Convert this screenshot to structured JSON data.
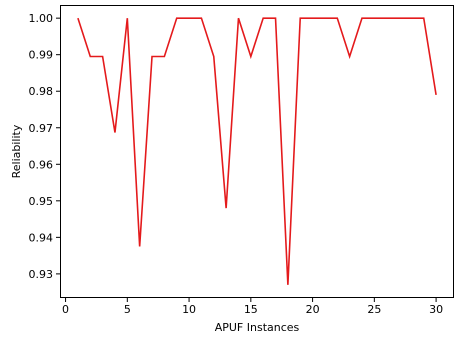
{
  "chart_data": {
    "type": "line",
    "title": "",
    "xlabel": "APUF Instances",
    "ylabel": "Reliability",
    "xlim": [
      -0.45,
      31.45
    ],
    "ylim": [
      0.9234,
      1.0036
    ],
    "xticks": [
      0,
      5,
      10,
      15,
      20,
      25,
      30
    ],
    "xtick_labels": [
      "0",
      "5",
      "10",
      "15",
      "20",
      "25",
      "30"
    ],
    "yticks": [
      0.93,
      0.94,
      0.95,
      0.96,
      0.97,
      0.98,
      0.99,
      1.0
    ],
    "ytick_labels": [
      "0.93",
      "0.94",
      "0.95",
      "0.96",
      "0.97",
      "0.98",
      "0.99",
      "1.00"
    ],
    "grid": false,
    "legend": "none",
    "series": [
      {
        "color": "#e41a1c",
        "x": [
          1,
          2,
          3,
          4,
          5,
          6,
          7,
          8,
          9,
          10,
          11,
          12,
          13,
          14,
          15,
          16,
          17,
          18,
          19,
          20,
          21,
          22,
          23,
          24,
          25,
          26,
          27,
          28,
          29,
          30
        ],
        "y": [
          1.0,
          0.9895,
          0.9895,
          0.9687,
          1.0,
          0.9375,
          0.9895,
          0.9895,
          1.0,
          1.0,
          1.0,
          0.9895,
          0.948,
          1.0,
          0.9895,
          1.0,
          1.0,
          0.927,
          1.0,
          1.0,
          1.0,
          1.0,
          0.9895,
          1.0,
          1.0,
          1.0,
          1.0,
          1.0,
          1.0,
          0.979
        ]
      }
    ]
  }
}
